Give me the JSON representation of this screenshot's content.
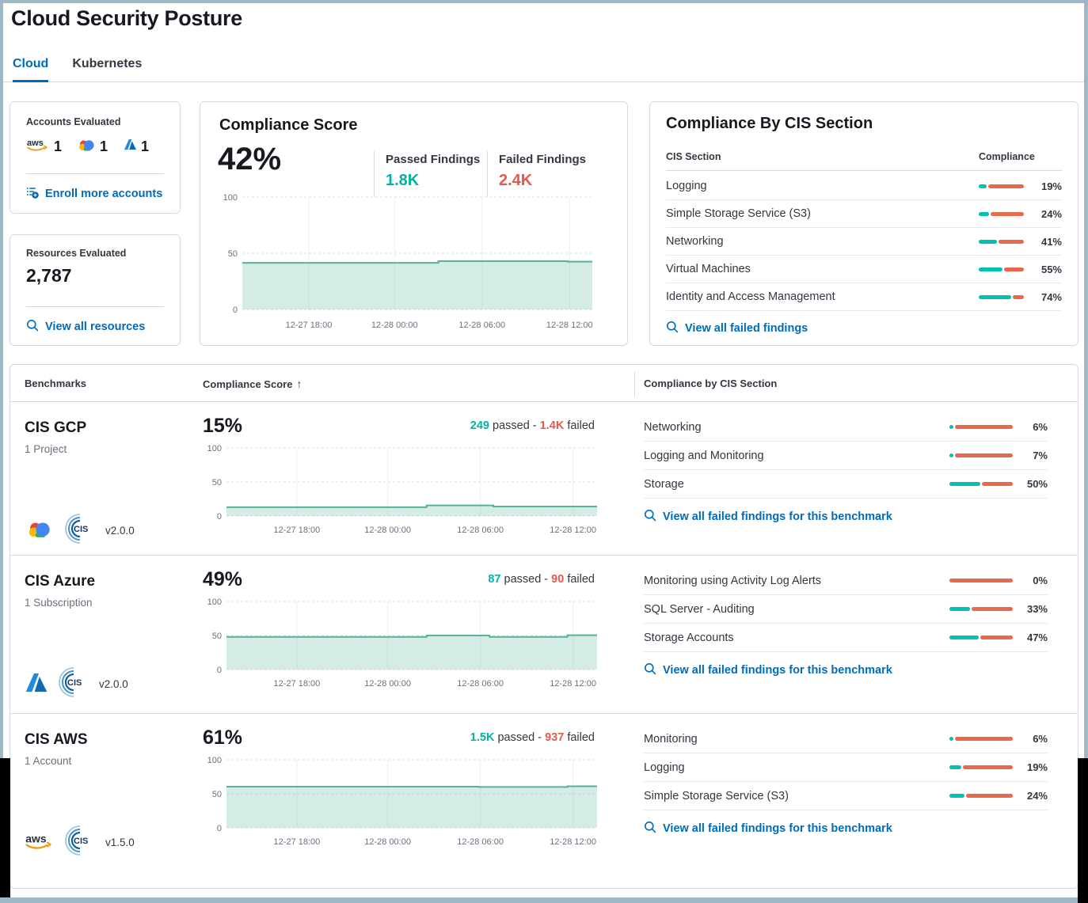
{
  "page": {
    "title": "Cloud Security Posture"
  },
  "tabs": [
    {
      "label": "Cloud",
      "active": true
    },
    {
      "label": "Kubernetes",
      "active": false
    }
  ],
  "colors": {
    "accent_blue": "#006bb8",
    "teal_text": "#00b3a4",
    "bar_teal": "#00bfb3",
    "red_text": "#e8584c",
    "bar_red": "#e8684c",
    "chart_line": "#54b399",
    "chart_fill": "rgba(84,179,153,0.25)",
    "frame": "#9db8c7"
  },
  "accounts_card": {
    "title": "Accounts Evaluated",
    "providers": [
      {
        "icon": "aws-icon",
        "count": "1"
      },
      {
        "icon": "gcp-icon",
        "count": "1"
      },
      {
        "icon": "azure-icon",
        "count": "1"
      }
    ],
    "link": "Enroll more accounts"
  },
  "resources_card": {
    "title": "Resources Evaluated",
    "value": "2,787",
    "link": "View all resources"
  },
  "time_ticks": [
    "12-27 18:00",
    "12-28 00:00",
    "12-28 06:00",
    "12-28 12:00"
  ],
  "y_ticks": [
    "100",
    "50",
    "0"
  ],
  "score_card": {
    "title": "Compliance Score",
    "score": "42%",
    "passed_label": "Passed Findings",
    "passed_value": "1.8K",
    "failed_label": "Failed Findings",
    "failed_value": "2.4K",
    "trend": [
      [
        0,
        41.5
      ],
      [
        0.56,
        41.5
      ],
      [
        0.56,
        43
      ],
      [
        0.93,
        43
      ],
      [
        0.93,
        42.5
      ],
      [
        1,
        42.5
      ]
    ]
  },
  "cis_card": {
    "title": "Compliance By CIS Section",
    "col_section": "CIS Section",
    "col_compliance": "Compliance",
    "rows": [
      {
        "label": "Logging",
        "pct": 19
      },
      {
        "label": "Simple Storage Service (S3)",
        "pct": 24
      },
      {
        "label": "Networking",
        "pct": 41
      },
      {
        "label": "Virtual Machines",
        "pct": 55
      },
      {
        "label": "Identity and Access Management",
        "pct": 74
      }
    ],
    "link": "View all failed findings"
  },
  "benchmarks_table": {
    "headers": {
      "benchmarks": "Benchmarks",
      "score": "Compliance Score",
      "sort_indicator": "↑",
      "sections": "Compliance by CIS Section"
    },
    "passed_word": "passed",
    "failed_word": "failed",
    "rows": [
      {
        "name": "CIS GCP",
        "scope": "1 Project",
        "provider": "gcp",
        "version": "v2.0.0",
        "score": "15%",
        "passed": "249",
        "failed": "1.4K",
        "trend": [
          [
            0,
            13
          ],
          [
            0.54,
            13
          ],
          [
            0.54,
            15.5
          ],
          [
            0.72,
            15.5
          ],
          [
            0.72,
            14
          ],
          [
            1,
            14
          ]
        ],
        "sections": [
          {
            "label": "Networking",
            "pct": 6
          },
          {
            "label": "Logging and Monitoring",
            "pct": 7
          },
          {
            "label": "Storage",
            "pct": 50
          }
        ],
        "link": "View all failed findings for this benchmark"
      },
      {
        "name": "CIS Azure",
        "scope": "1 Subscription",
        "provider": "azure",
        "version": "v2.0.0",
        "score": "49%",
        "passed": "87",
        "failed": "90",
        "trend": [
          [
            0,
            48
          ],
          [
            0.54,
            48
          ],
          [
            0.54,
            50
          ],
          [
            0.71,
            50
          ],
          [
            0.71,
            48
          ],
          [
            0.92,
            48
          ],
          [
            0.92,
            50.5
          ],
          [
            1,
            50.5
          ]
        ],
        "sections": [
          {
            "label": "Monitoring using Activity Log Alerts",
            "pct": 0
          },
          {
            "label": "SQL Server - Auditing",
            "pct": 33
          },
          {
            "label": "Storage Accounts",
            "pct": 47
          }
        ],
        "link": "View all failed findings for this benchmark"
      },
      {
        "name": "CIS AWS",
        "scope": "1 Account",
        "provider": "aws",
        "version": "v1.5.0",
        "score": "61%",
        "passed": "1.5K",
        "failed": "937",
        "trend": [
          [
            0,
            60.5
          ],
          [
            0.68,
            60.5
          ],
          [
            0.68,
            60
          ],
          [
            0.92,
            60
          ],
          [
            0.92,
            61
          ],
          [
            1,
            61
          ]
        ],
        "sections": [
          {
            "label": "Monitoring",
            "pct": 6
          },
          {
            "label": "Logging",
            "pct": 19
          },
          {
            "label": "Simple Storage Service (S3)",
            "pct": 24
          }
        ],
        "link": "View all failed findings for this benchmark"
      }
    ]
  }
}
